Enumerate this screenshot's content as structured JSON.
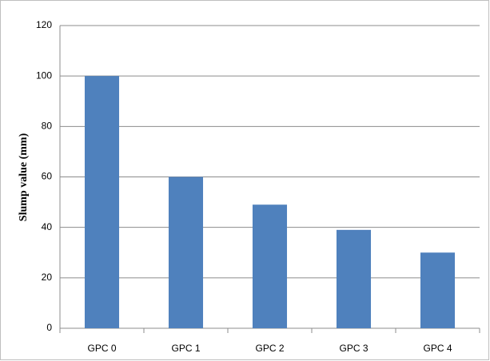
{
  "chart_data": {
    "type": "bar",
    "y_label": "Slump value (mm)",
    "categories": [
      "GPC 0",
      "GPC 1",
      "GPC 2",
      "GPC 3",
      "GPC 4"
    ],
    "values": [
      100,
      60,
      49,
      39,
      30
    ],
    "color": "#4f81bd",
    "ylim": [
      0,
      120
    ],
    "yticks": [
      0,
      20,
      40,
      60,
      80,
      100,
      120
    ],
    "grid": true
  }
}
